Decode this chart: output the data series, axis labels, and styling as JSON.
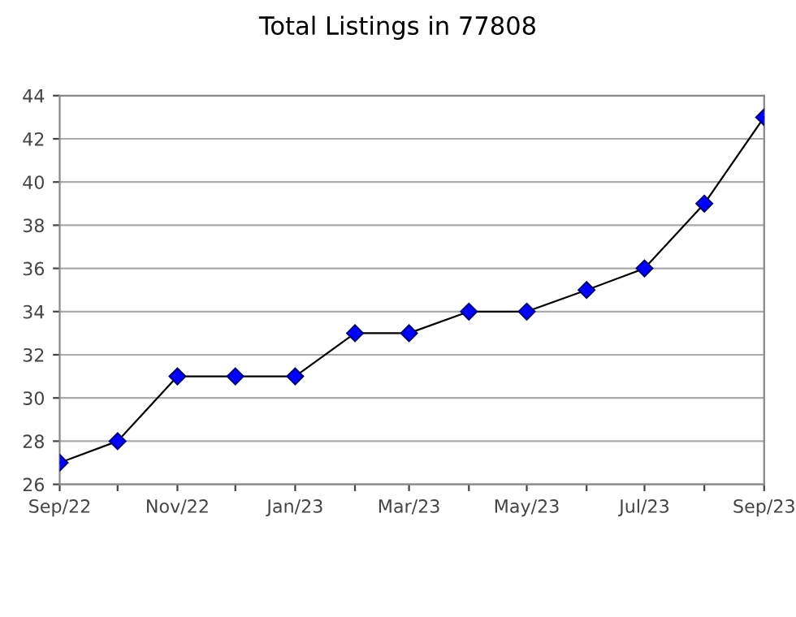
{
  "chart_data": {
    "type": "line",
    "title": "Total Listings in 77808",
    "x": [
      "2022-09",
      "2022-10",
      "2022-11",
      "2022-12",
      "2023-01",
      "2023-02",
      "2023-03",
      "2023-04",
      "2023-05",
      "2023-06",
      "2023-07",
      "2023-08",
      "2023-09"
    ],
    "series": [
      {
        "color": "#0000ff",
        "values": [
          27,
          28,
          31,
          31,
          31,
          33,
          33,
          34,
          34,
          35,
          36,
          39,
          43
        ]
      }
    ],
    "marker": "diamond",
    "line_style": "solid",
    "grid": "y",
    "legend": false,
    "xlim": [
      "2022-09",
      "2023-09"
    ],
    "xticks": [
      {
        "value": "2022-09",
        "label": "Sep/22"
      },
      {
        "value": "2022-10",
        "label": null
      },
      {
        "value": "2022-11",
        "label": "Nov/22"
      },
      {
        "value": "2022-12",
        "label": null
      },
      {
        "value": "2023-01",
        "label": "Jan/23"
      },
      {
        "value": "2023-02",
        "label": null
      },
      {
        "value": "2023-03",
        "label": "Mar/23"
      },
      {
        "value": "2023-04",
        "label": null
      },
      {
        "value": "2023-05",
        "label": "May/23"
      },
      {
        "value": "2023-06",
        "label": null
      },
      {
        "value": "2023-07",
        "label": "Jul/23"
      },
      {
        "value": "2023-08",
        "label": null
      },
      {
        "value": "2023-09",
        "label": "Sep/23"
      }
    ],
    "ylim": [
      26,
      44
    ],
    "yticks": [
      26,
      28,
      30,
      32,
      34,
      36,
      38,
      40,
      42,
      44
    ]
  }
}
